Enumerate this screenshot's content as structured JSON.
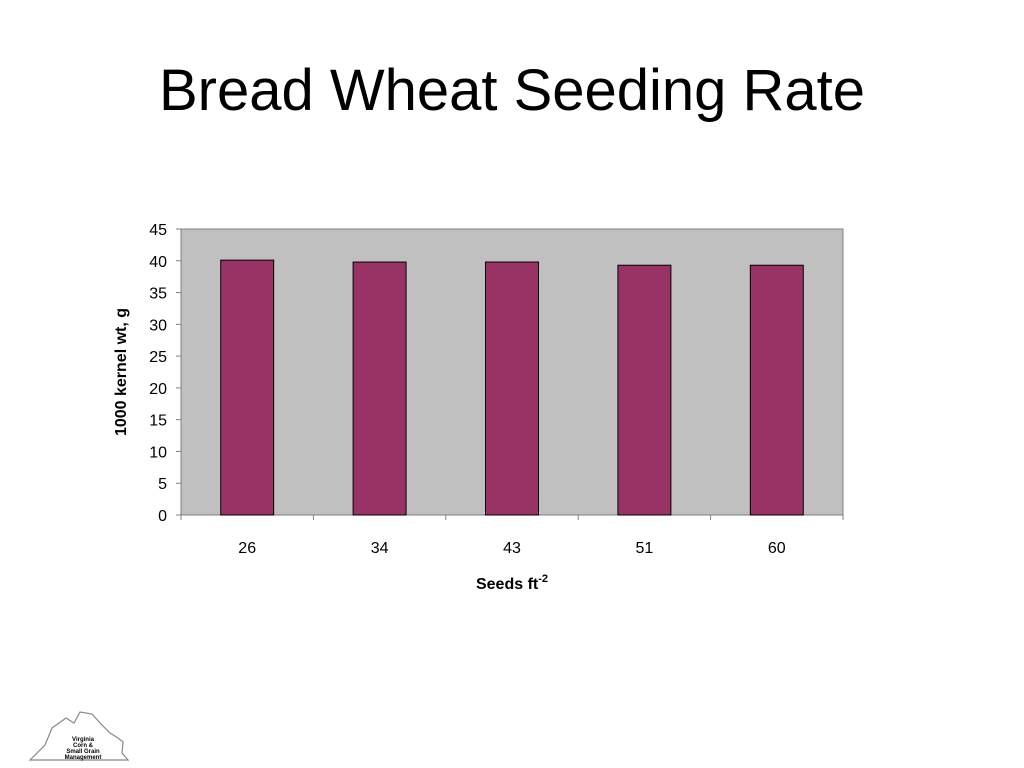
{
  "slide": {
    "title": "Bread Wheat Seeding Rate"
  },
  "logo": {
    "text_lines": [
      "Virginia",
      "Corn &",
      "Small Grain",
      "Management"
    ]
  },
  "chart_data": {
    "type": "bar",
    "categories": [
      "26",
      "34",
      "43",
      "51",
      "60"
    ],
    "values": [
      40.1,
      39.8,
      39.8,
      39.3,
      39.3
    ],
    "ylabel": "1000 kernel wt, g",
    "xlabel": {
      "base": "Seeds ft",
      "superscript": "-2"
    },
    "ylim": [
      0,
      45
    ],
    "yticks": [
      0,
      5,
      10,
      15,
      20,
      25,
      30,
      35,
      40,
      45
    ],
    "grid": false,
    "legend": "none",
    "colors": {
      "bar_fill": "#993366",
      "bar_stroke": "#000000",
      "plot_background": "#C0C0C0",
      "plot_border": "#808080"
    }
  }
}
